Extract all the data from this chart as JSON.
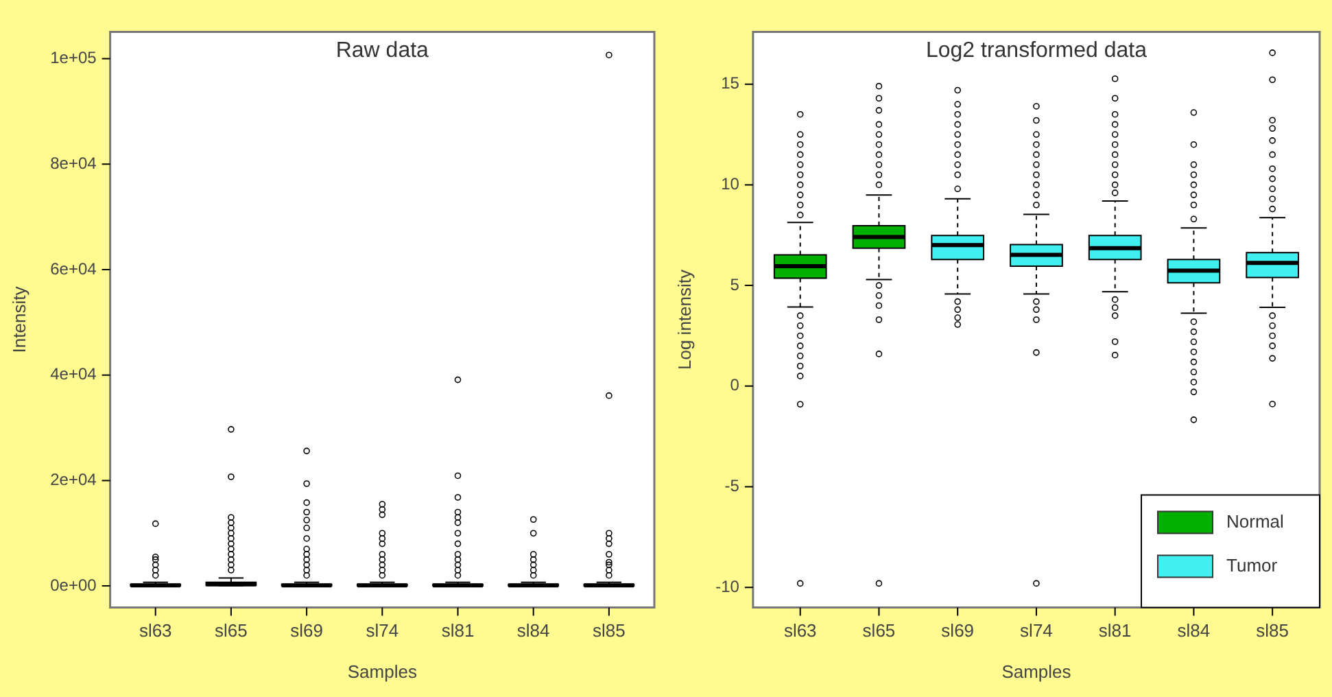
{
  "chart_data": [
    {
      "type": "box",
      "title": "Raw data",
      "xlabel": "Samples",
      "ylabel": "Intensity",
      "categories": [
        "sl63",
        "sl65",
        "sl69",
        "sl74",
        "sl81",
        "sl84",
        "sl85"
      ],
      "ylim": [
        -4100,
        105100
      ],
      "yticks": [
        {
          "value": 0,
          "label": "0e+00"
        },
        {
          "value": 20000,
          "label": "2e+04"
        },
        {
          "value": 40000,
          "label": "4e+04"
        },
        {
          "value": 60000,
          "label": "6e+04"
        },
        {
          "value": 80000,
          "label": "8e+04"
        },
        {
          "value": 100000,
          "label": "1e+05"
        }
      ],
      "grid": false,
      "series": [
        {
          "color": "#ffffff",
          "boxes": [
            {
              "low": 0,
              "q1": 0,
              "median": 100,
              "q3": 300,
              "high": 700,
              "outliers": [
                2000,
                3000,
                4000,
                5000,
                5500,
                11800
              ]
            },
            {
              "low": 0,
              "q1": 100,
              "median": 300,
              "q3": 700,
              "high": 1500,
              "outliers": [
                3000,
                4000,
                5000,
                6000,
                7000,
                8000,
                9000,
                10000,
                11000,
                12000,
                13000,
                20700,
                29700
              ]
            },
            {
              "low": 0,
              "q1": 0,
              "median": 100,
              "q3": 300,
              "high": 700,
              "outliers": [
                2000,
                3000,
                4000,
                5000,
                6000,
                7000,
                9000,
                11000,
                12500,
                14000,
                15800,
                19400,
                25600
              ]
            },
            {
              "low": 0,
              "q1": 0,
              "median": 100,
              "q3": 300,
              "high": 700,
              "outliers": [
                2000,
                3000,
                4000,
                5000,
                6000,
                8000,
                9000,
                10000,
                13500,
                14500,
                15500
              ]
            },
            {
              "low": 0,
              "q1": 0,
              "median": 100,
              "q3": 300,
              "high": 700,
              "outliers": [
                2000,
                3000,
                4000,
                5000,
                6000,
                8000,
                10000,
                12000,
                13000,
                14000,
                16800,
                20900,
                39100
              ]
            },
            {
              "low": 0,
              "q1": 0,
              "median": 100,
              "q3": 300,
              "high": 700,
              "outliers": [
                2000,
                3000,
                4000,
                5000,
                6000,
                10000,
                12600
              ]
            },
            {
              "low": 0,
              "q1": 0,
              "median": 100,
              "q3": 300,
              "high": 700,
              "outliers": [
                2000,
                3000,
                4000,
                4500,
                6000,
                8000,
                9000,
                10000,
                36100,
                100700
              ]
            }
          ]
        }
      ]
    },
    {
      "type": "box",
      "title": "Log2 transformed data",
      "xlabel": "Samples",
      "ylabel": "Log intensity",
      "categories": [
        "sl63",
        "sl65",
        "sl69",
        "sl74",
        "sl81",
        "sl84",
        "sl85"
      ],
      "ylim": [
        -11,
        17.6
      ],
      "yticks": [
        -10,
        -5,
        0,
        5,
        10,
        15
      ],
      "grid": false,
      "legend": "bottom right",
      "series": [
        {
          "name": "Normal",
          "color": "#00b000",
          "boxes": [
            {
              "low": 3.93,
              "q1": 5.36,
              "median": 5.96,
              "q3": 6.52,
              "high": 8.13,
              "outliers": [
                8.5,
                9,
                9.5,
                10,
                10.5,
                11,
                11.5,
                12,
                12.5,
                13.5,
                3.5,
                3,
                2.5,
                2,
                1.5,
                1,
                0.5,
                -0.9,
                -9.8
              ]
            },
            {
              "low": 5.29,
              "q1": 6.85,
              "median": 7.41,
              "q3": 7.97,
              "high": 9.49,
              "outliers": [
                10,
                10.5,
                11,
                11.5,
                12,
                12.5,
                13,
                13.7,
                14.3,
                14.9,
                5,
                4.5,
                4,
                3.3,
                1.6,
                -9.8
              ]
            },
            null,
            null,
            null,
            null,
            null
          ]
        },
        {
          "name": "Tumor",
          "color": "#40f0f0",
          "boxes": [
            null,
            null,
            {
              "low": 4.58,
              "q1": 6.29,
              "median": 7.01,
              "q3": 7.48,
              "high": 9.31,
              "outliers": [
                9.8,
                10.5,
                11,
                11.5,
                12,
                12.5,
                13,
                13.5,
                14,
                14.7,
                4.2,
                3.8,
                3.4,
                3.06
              ]
            },
            {
              "low": 4.58,
              "q1": 5.96,
              "median": 6.52,
              "q3": 7.03,
              "high": 8.53,
              "outliers": [
                9,
                9.5,
                10,
                10.5,
                11,
                11.5,
                12,
                12.5,
                13.2,
                13.9,
                4.2,
                3.8,
                3.3,
                1.67,
                -9.8
              ]
            },
            {
              "low": 4.69,
              "q1": 6.29,
              "median": 6.85,
              "q3": 7.48,
              "high": 9.2,
              "outliers": [
                9.6,
                10,
                10.5,
                11,
                11.5,
                12,
                12.5,
                13,
                13.5,
                14.3,
                15.27,
                4.3,
                3.9,
                3.5,
                2.21,
                1.54
              ]
            },
            {
              "low": 3.62,
              "q1": 5.13,
              "median": 5.74,
              "q3": 6.29,
              "high": 7.86,
              "outliers": [
                8.3,
                9,
                9.5,
                10,
                10.5,
                11,
                12,
                13.59,
                3.2,
                2.7,
                2.2,
                1.7,
                1.2,
                0.7,
                0.2,
                -0.29,
                -1.67
              ]
            },
            {
              "low": 3.91,
              "q1": 5.4,
              "median": 6.12,
              "q3": 6.63,
              "high": 8.37,
              "outliers": [
                8.8,
                9.3,
                9.8,
                10.3,
                10.8,
                11.5,
                12.2,
                12.8,
                13.21,
                15.22,
                16.56,
                3.5,
                3,
                2.5,
                2,
                1.38,
                -0.89
              ]
            }
          ]
        }
      ]
    }
  ]
}
